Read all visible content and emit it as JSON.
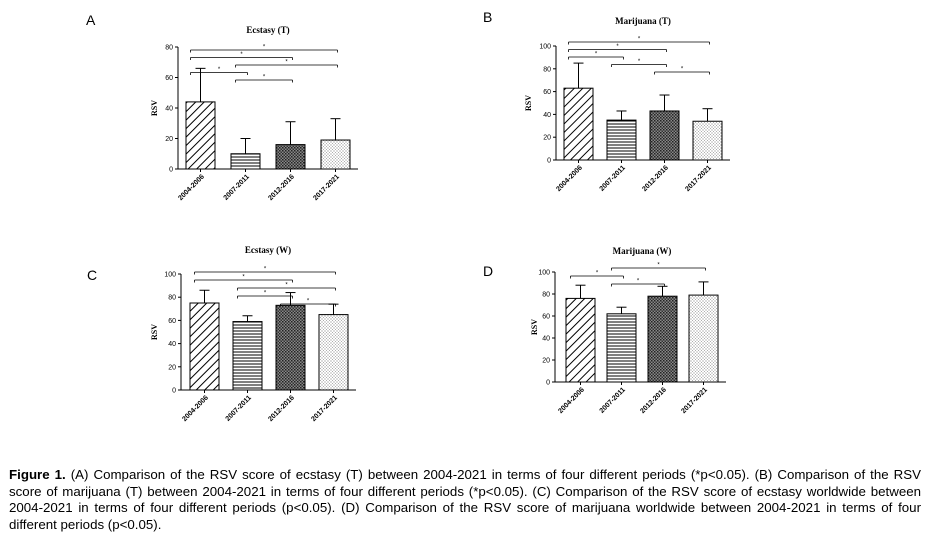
{
  "chart_data": [
    {
      "panel": "A",
      "type": "bar",
      "title": "Ecstasy (T)",
      "ylabel": "RSV",
      "xlabel": "",
      "categories": [
        "2004-2006",
        "2007-2011",
        "2012-2016",
        "2017-2021"
      ],
      "values": [
        44,
        10,
        16,
        19
      ],
      "errors": [
        22,
        10,
        15,
        14
      ],
      "ylim": [
        0,
        80
      ],
      "yticks": [
        "0",
        "20",
        "40",
        "60",
        "80"
      ],
      "significance": [
        {
          "from": 0,
          "to": 1,
          "label": "*"
        },
        {
          "from": 0,
          "to": 2,
          "label": "*"
        },
        {
          "from": 0,
          "to": 3,
          "label": "*"
        },
        {
          "from": 1,
          "to": 2,
          "label": "*"
        },
        {
          "from": 1,
          "to": 3,
          "label": "*"
        }
      ],
      "patterns": [
        "diag",
        "horiz",
        "dense",
        "dots"
      ]
    },
    {
      "panel": "B",
      "type": "bar",
      "title": "Marijuana (T)",
      "ylabel": "RSV",
      "xlabel": "",
      "categories": [
        "2004-2006",
        "2007-2011",
        "2012-2016",
        "2017-2021"
      ],
      "values": [
        63,
        35,
        43,
        34
      ],
      "errors": [
        22,
        8,
        14,
        11
      ],
      "ylim": [
        0,
        100
      ],
      "yticks": [
        "0",
        "20",
        "40",
        "60",
        "80",
        "100"
      ],
      "significance": [
        {
          "from": 0,
          "to": 1,
          "label": "*"
        },
        {
          "from": 0,
          "to": 2,
          "label": "*"
        },
        {
          "from": 0,
          "to": 3,
          "label": "*"
        },
        {
          "from": 1,
          "to": 2,
          "label": "*"
        },
        {
          "from": 2,
          "to": 3,
          "label": "*"
        }
      ],
      "patterns": [
        "diag",
        "horiz",
        "dense",
        "dots"
      ]
    },
    {
      "panel": "C",
      "type": "bar",
      "title": "Ecstasy (W)",
      "ylabel": "RSV",
      "xlabel": "",
      "categories": [
        "2004-2006",
        "2007-2011",
        "2012-2016",
        "2017-2021"
      ],
      "values": [
        75,
        59,
        73,
        65
      ],
      "errors": [
        11,
        5,
        11,
        9
      ],
      "ylim": [
        0,
        100
      ],
      "yticks": [
        "0",
        "20",
        "40",
        "60",
        "80",
        "100"
      ],
      "significance": [
        {
          "from": 0,
          "to": 3,
          "label": "*"
        },
        {
          "from": 0,
          "to": 2,
          "label": "*"
        },
        {
          "from": 1,
          "to": 3,
          "label": "*"
        },
        {
          "from": 1,
          "to": 2,
          "label": "*"
        },
        {
          "from": 2,
          "to": 3,
          "label": "*"
        }
      ],
      "patterns": [
        "diag",
        "horiz",
        "dense",
        "dots"
      ]
    },
    {
      "panel": "D",
      "type": "bar",
      "title": "Marijuana (W)",
      "ylabel": "RSV",
      "xlabel": "",
      "categories": [
        "2004-2006",
        "2007-2011",
        "2012-2016",
        "2017-2021"
      ],
      "values": [
        76,
        62,
        78,
        79
      ],
      "errors": [
        12,
        6,
        9,
        12
      ],
      "ylim": [
        0,
        100
      ],
      "yticks": [
        "0",
        "20",
        "40",
        "60",
        "80",
        "100"
      ],
      "significance": [
        {
          "from": 0,
          "to": 1,
          "label": "*"
        },
        {
          "from": 1,
          "to": 3,
          "label": "*"
        },
        {
          "from": 1,
          "to": 2,
          "label": "*"
        }
      ],
      "patterns": [
        "diag",
        "horiz",
        "dense",
        "dots"
      ]
    }
  ],
  "caption": {
    "figure_label": "Figure 1.",
    "text": " (A) Comparison of the RSV score of ecstasy (T) between 2004-2021 in terms of four different periods (*p<0.05). (B) Comparison of the RSV score of marijuana (T) between 2004-2021 in terms of four different periods (*p<0.05). (C) Comparison of the RSV score of ecstasy worldwide between 2004-2021 in terms of four different periods (p<0.05). (D) Comparison of the RSV score of marijuana worldwide between 2004-2021 in terms of four different periods (p<0.05)."
  }
}
